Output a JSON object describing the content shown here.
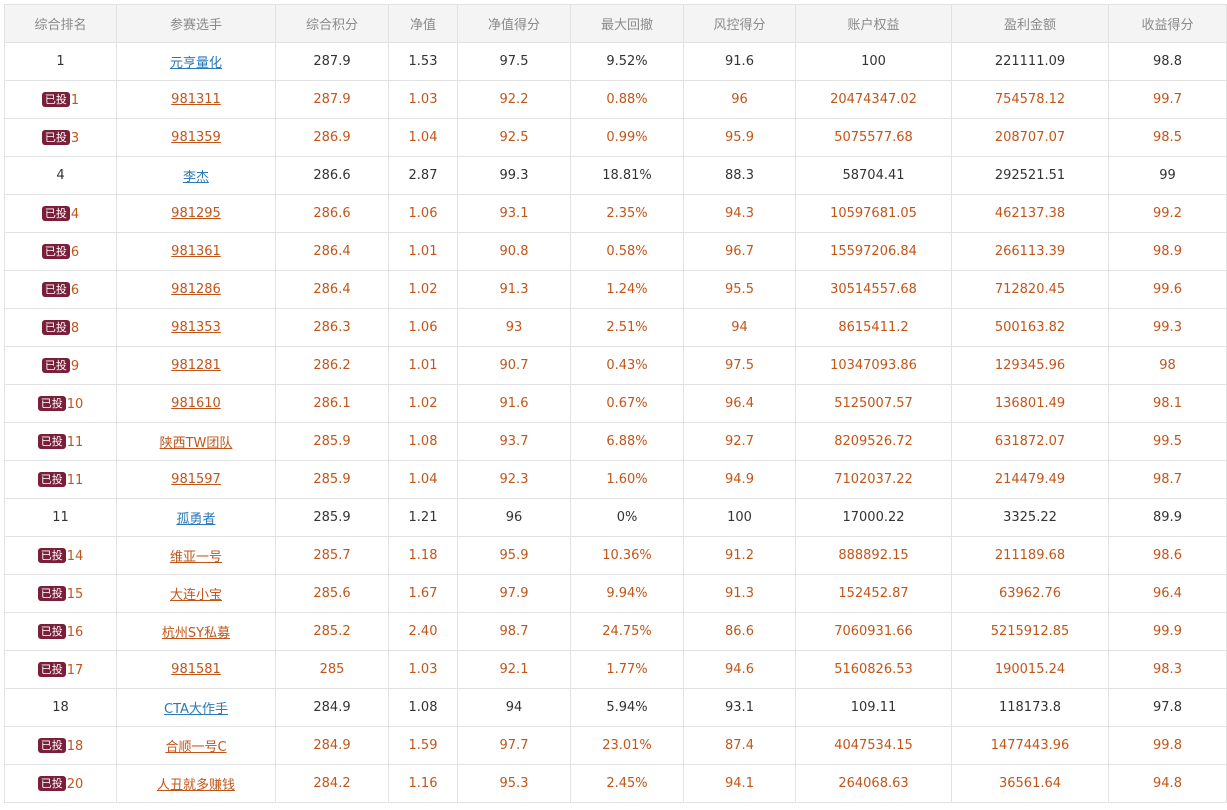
{
  "headers": [
    "综合排名",
    "参赛选手",
    "综合积分",
    "净值",
    "净值得分",
    "最大回撤",
    "风控得分",
    "账户权益",
    "盈利金额",
    "收益得分"
  ],
  "badge_label": "已投",
  "rows": [
    {
      "invested": false,
      "rank": "1",
      "player": "元亨量化",
      "score": "287.9",
      "nav": "1.53",
      "nav_score": "97.5",
      "max_drawdown": "9.52%",
      "risk_score": "91.6",
      "equity": "100",
      "profit": "221111.09",
      "return_score": "98.8"
    },
    {
      "invested": true,
      "rank": "1",
      "player": "981311",
      "score": "287.9",
      "nav": "1.03",
      "nav_score": "92.2",
      "max_drawdown": "0.88%",
      "risk_score": "96",
      "equity": "20474347.02",
      "profit": "754578.12",
      "return_score": "99.7"
    },
    {
      "invested": true,
      "rank": "3",
      "player": "981359",
      "score": "286.9",
      "nav": "1.04",
      "nav_score": "92.5",
      "max_drawdown": "0.99%",
      "risk_score": "95.9",
      "equity": "5075577.68",
      "profit": "208707.07",
      "return_score": "98.5"
    },
    {
      "invested": false,
      "rank": "4",
      "player": "李杰",
      "score": "286.6",
      "nav": "2.87",
      "nav_score": "99.3",
      "max_drawdown": "18.81%",
      "risk_score": "88.3",
      "equity": "58704.41",
      "profit": "292521.51",
      "return_score": "99"
    },
    {
      "invested": true,
      "rank": "4",
      "player": "981295",
      "score": "286.6",
      "nav": "1.06",
      "nav_score": "93.1",
      "max_drawdown": "2.35%",
      "risk_score": "94.3",
      "equity": "10597681.05",
      "profit": "462137.38",
      "return_score": "99.2"
    },
    {
      "invested": true,
      "rank": "6",
      "player": "981361",
      "score": "286.4",
      "nav": "1.01",
      "nav_score": "90.8",
      "max_drawdown": "0.58%",
      "risk_score": "96.7",
      "equity": "15597206.84",
      "profit": "266113.39",
      "return_score": "98.9"
    },
    {
      "invested": true,
      "rank": "6",
      "player": "981286",
      "score": "286.4",
      "nav": "1.02",
      "nav_score": "91.3",
      "max_drawdown": "1.24%",
      "risk_score": "95.5",
      "equity": "30514557.68",
      "profit": "712820.45",
      "return_score": "99.6"
    },
    {
      "invested": true,
      "rank": "8",
      "player": "981353",
      "score": "286.3",
      "nav": "1.06",
      "nav_score": "93",
      "max_drawdown": "2.51%",
      "risk_score": "94",
      "equity": "8615411.2",
      "profit": "500163.82",
      "return_score": "99.3"
    },
    {
      "invested": true,
      "rank": "9",
      "player": "981281",
      "score": "286.2",
      "nav": "1.01",
      "nav_score": "90.7",
      "max_drawdown": "0.43%",
      "risk_score": "97.5",
      "equity": "10347093.86",
      "profit": "129345.96",
      "return_score": "98"
    },
    {
      "invested": true,
      "rank": "10",
      "player": "981610",
      "score": "286.1",
      "nav": "1.02",
      "nav_score": "91.6",
      "max_drawdown": "0.67%",
      "risk_score": "96.4",
      "equity": "5125007.57",
      "profit": "136801.49",
      "return_score": "98.1"
    },
    {
      "invested": true,
      "rank": "11",
      "player": "陕西TW团队",
      "score": "285.9",
      "nav": "1.08",
      "nav_score": "93.7",
      "max_drawdown": "6.88%",
      "risk_score": "92.7",
      "equity": "8209526.72",
      "profit": "631872.07",
      "return_score": "99.5"
    },
    {
      "invested": true,
      "rank": "11",
      "player": "981597",
      "score": "285.9",
      "nav": "1.04",
      "nav_score": "92.3",
      "max_drawdown": "1.60%",
      "risk_score": "94.9",
      "equity": "7102037.22",
      "profit": "214479.49",
      "return_score": "98.7"
    },
    {
      "invested": false,
      "rank": "11",
      "player": "孤勇者",
      "score": "285.9",
      "nav": "1.21",
      "nav_score": "96",
      "max_drawdown": "0%",
      "risk_score": "100",
      "equity": "17000.22",
      "profit": "3325.22",
      "return_score": "89.9"
    },
    {
      "invested": true,
      "rank": "14",
      "player": "维亚一号",
      "score": "285.7",
      "nav": "1.18",
      "nav_score": "95.9",
      "max_drawdown": "10.36%",
      "risk_score": "91.2",
      "equity": "888892.15",
      "profit": "211189.68",
      "return_score": "98.6"
    },
    {
      "invested": true,
      "rank": "15",
      "player": "大连小宝",
      "score": "285.6",
      "nav": "1.67",
      "nav_score": "97.9",
      "max_drawdown": "9.94%",
      "risk_score": "91.3",
      "equity": "152452.87",
      "profit": "63962.76",
      "return_score": "96.4"
    },
    {
      "invested": true,
      "rank": "16",
      "player": "杭州SY私募",
      "score": "285.2",
      "nav": "2.40",
      "nav_score": "98.7",
      "max_drawdown": "24.75%",
      "risk_score": "86.6",
      "equity": "7060931.66",
      "profit": "5215912.85",
      "return_score": "99.9"
    },
    {
      "invested": true,
      "rank": "17",
      "player": "981581",
      "score": "285",
      "nav": "1.03",
      "nav_score": "92.1",
      "max_drawdown": "1.77%",
      "risk_score": "94.6",
      "equity": "5160826.53",
      "profit": "190015.24",
      "return_score": "98.3"
    },
    {
      "invested": false,
      "rank": "18",
      "player": "CTA大作手",
      "score": "284.9",
      "nav": "1.08",
      "nav_score": "94",
      "max_drawdown": "5.94%",
      "risk_score": "93.1",
      "equity": "109.11",
      "profit": "118173.8",
      "return_score": "97.8"
    },
    {
      "invested": true,
      "rank": "18",
      "player": "合顺一号C",
      "score": "284.9",
      "nav": "1.59",
      "nav_score": "97.7",
      "max_drawdown": "23.01%",
      "risk_score": "87.4",
      "equity": "4047534.15",
      "profit": "1477443.96",
      "return_score": "99.8"
    },
    {
      "invested": true,
      "rank": "20",
      "player": "人丑就多赚钱",
      "score": "284.2",
      "nav": "1.16",
      "nav_score": "95.3",
      "max_drawdown": "2.45%",
      "risk_score": "94.1",
      "equity": "264068.63",
      "profit": "36561.64",
      "return_score": "94.8"
    }
  ]
}
